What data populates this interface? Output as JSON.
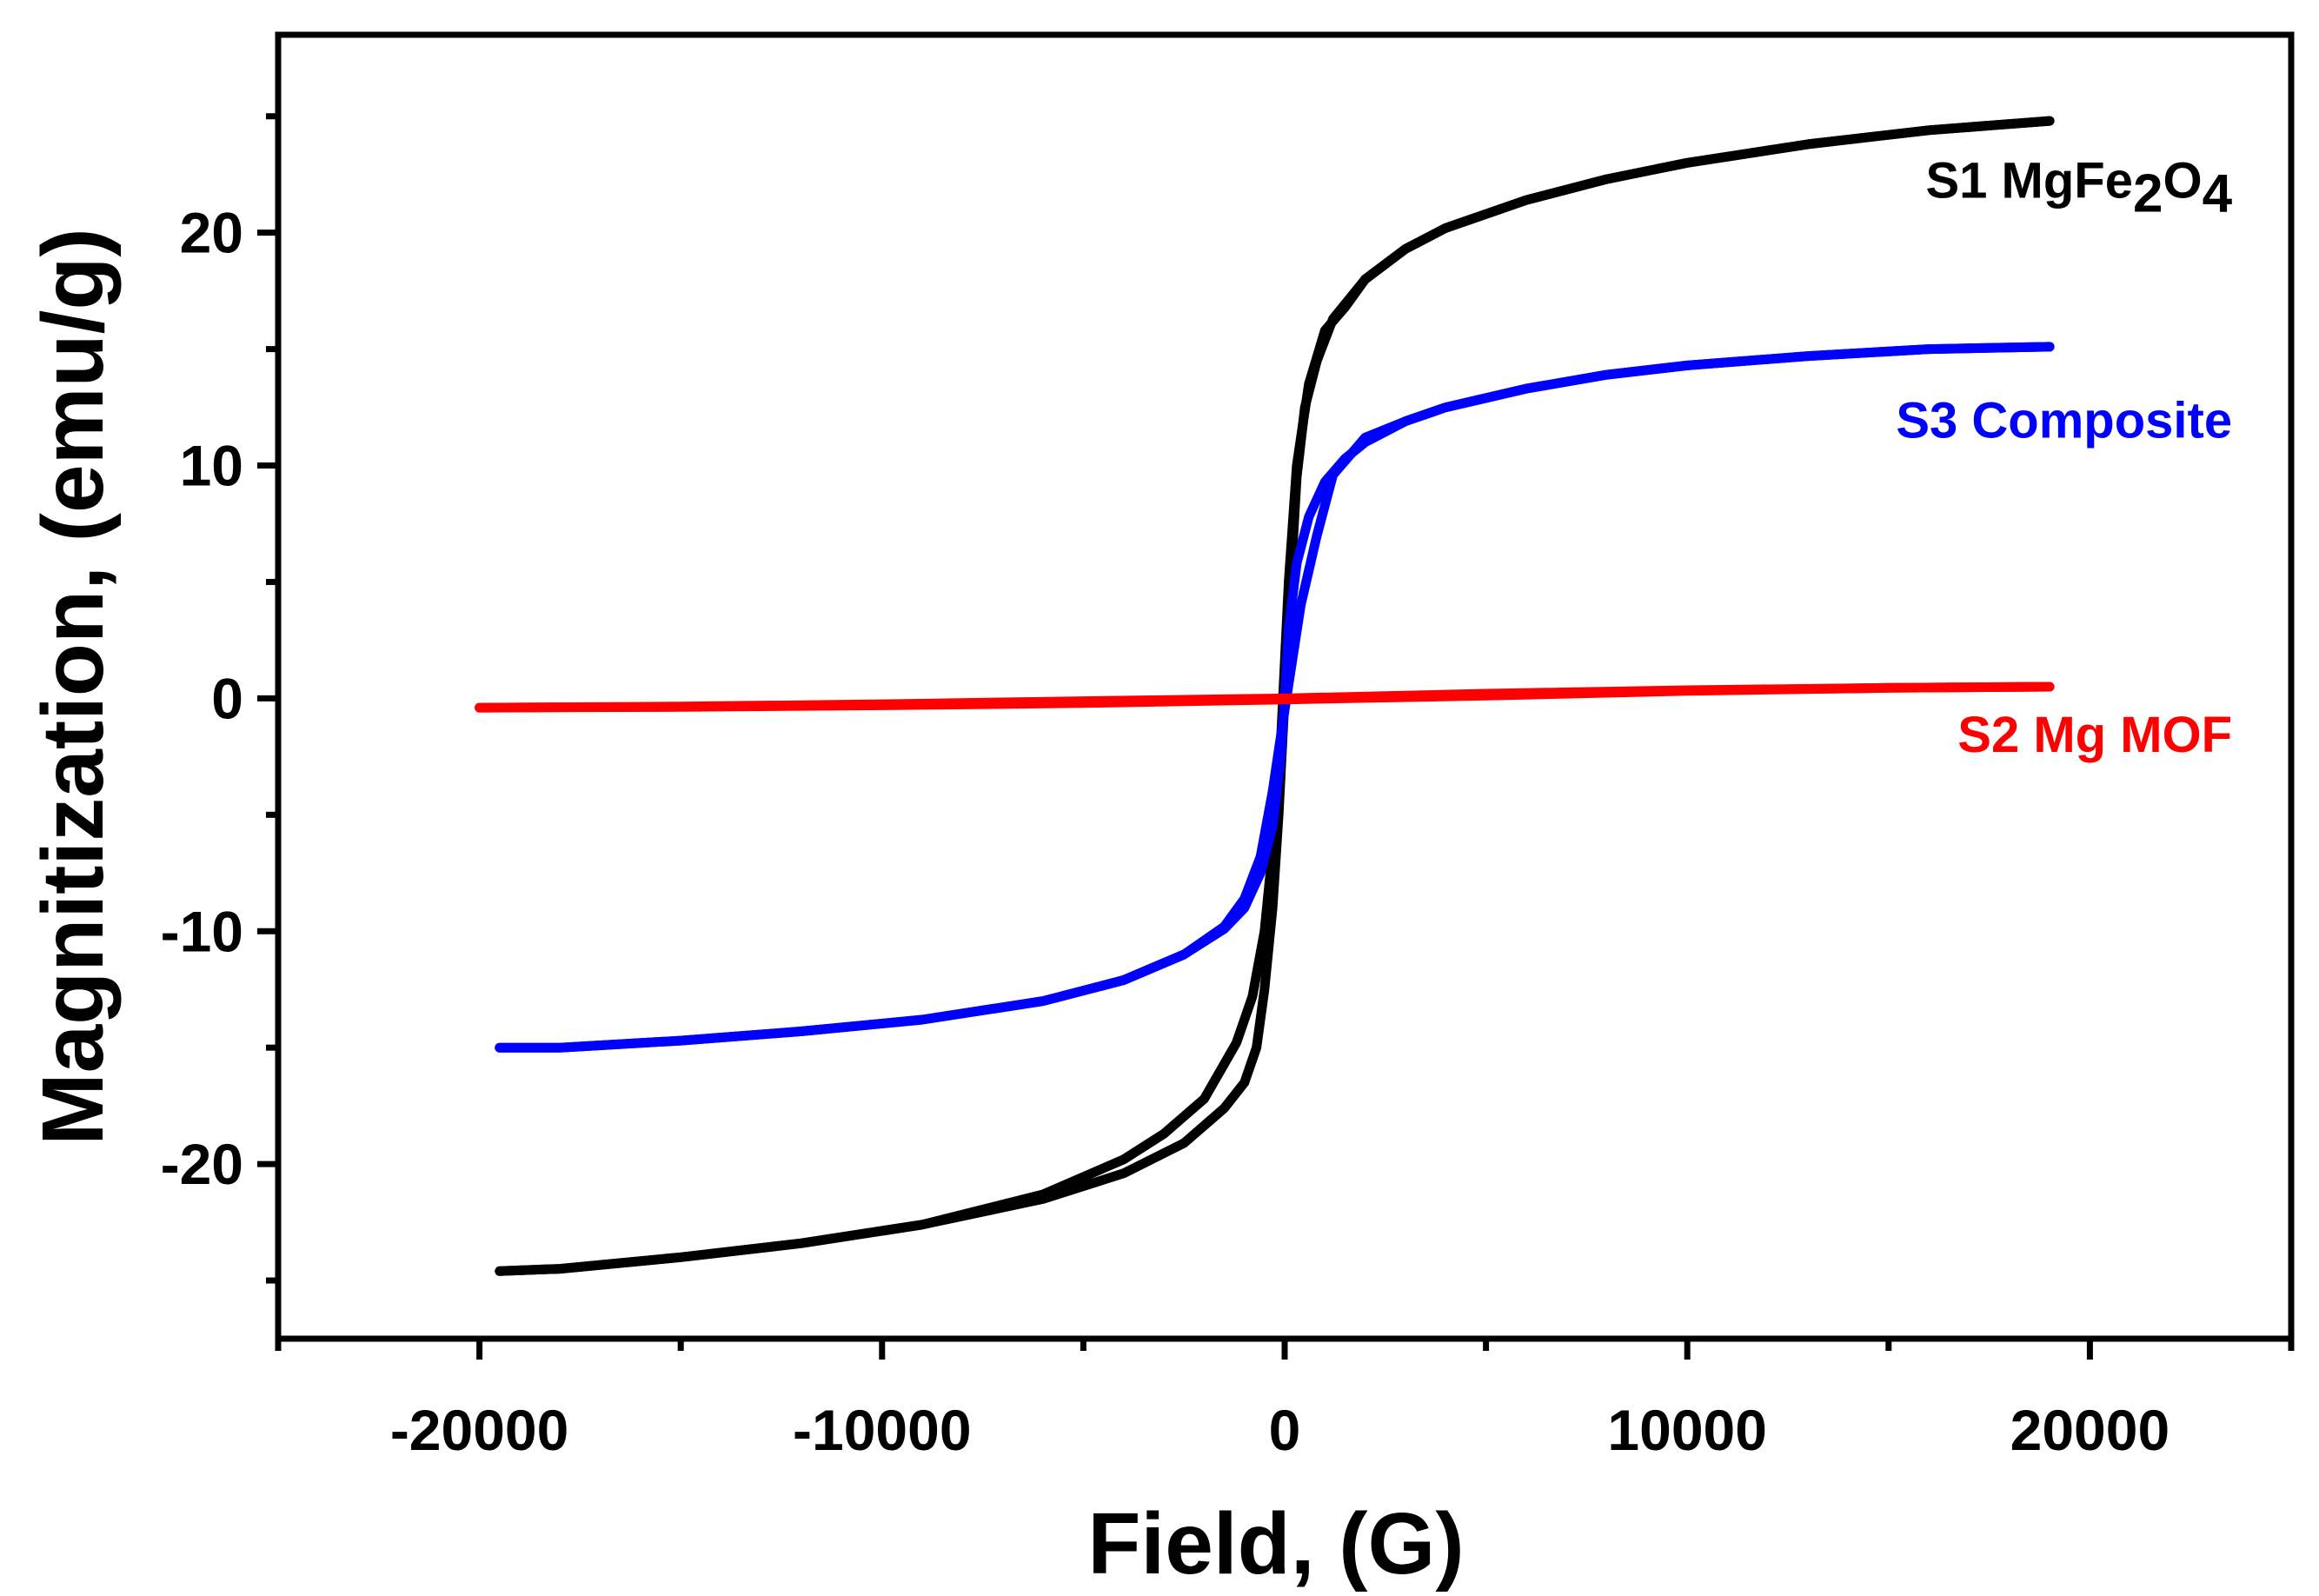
{
  "chart_data": {
    "type": "line",
    "title": "",
    "xlabel": "Field, (G)",
    "ylabel": "Magnitization, (emu/g)",
    "xlim": [
      -25000,
      25000
    ],
    "ylim": [
      -27.5,
      28.5
    ],
    "x_ticks": [
      -20000,
      -10000,
      0,
      10000,
      20000
    ],
    "x_tick_labels": [
      "-20000",
      "-10000",
      "0",
      "10000",
      "20000"
    ],
    "x_minor_ticks": [
      -25000,
      -15000,
      -5000,
      5000,
      15000,
      25000
    ],
    "y_ticks": [
      -20,
      -10,
      0,
      10,
      20
    ],
    "y_tick_labels": [
      "-20",
      "-10",
      "0",
      "10",
      "20"
    ],
    "y_minor_ticks": [
      -25,
      -15,
      -5,
      5,
      15,
      25
    ],
    "grid": false,
    "series": [
      {
        "name": "S1 MgFe2O4",
        "label_main": "S1 MgFe",
        "label_sub1": "2",
        "label_mid": "O",
        "label_sub2": "4",
        "color": "#000000",
        "label_anchor": [
          19000,
          21.5
        ],
        "branches": [
          {
            "x": [
              -19500,
              -18000,
              -15000,
              -12000,
              -9000,
              -6000,
              -4000,
              -2500,
              -1500,
              -1000,
              -700,
              -500,
              -300,
              -150,
              0,
              150,
              300,
              500,
              800,
              1200,
              2000,
              3000,
              4000,
              6000,
              8000,
              10000,
              13000,
              16000,
              19000
            ],
            "y": [
              -24.6,
              -24.5,
              -24.0,
              -23.4,
              -22.6,
              -21.5,
              -20.4,
              -19.1,
              -17.6,
              -16.5,
              -15.0,
              -12.5,
              -9.0,
              -5.0,
              0.0,
              5.0,
              9.5,
              12.5,
              14.5,
              16.3,
              18.0,
              19.3,
              20.2,
              21.4,
              22.3,
              23.0,
              23.8,
              24.4,
              24.8
            ]
          },
          {
            "x": [
              19000,
              16000,
              13000,
              10000,
              8000,
              6000,
              4000,
              3000,
              2000,
              1500,
              1000,
              600,
              300,
              100,
              -100,
              -300,
              -500,
              -800,
              -1200,
              -2000,
              -3000,
              -4000,
              -6000,
              -9000,
              -12000,
              -15000,
              -18000,
              -19500
            ],
            "y": [
              24.8,
              24.4,
              23.8,
              23.0,
              22.3,
              21.4,
              20.2,
              19.3,
              18.0,
              16.8,
              15.8,
              13.5,
              10.0,
              5.0,
              -2.0,
              -6.5,
              -10.0,
              -12.8,
              -14.8,
              -17.2,
              -18.7,
              -19.8,
              -21.3,
              -22.6,
              -23.4,
              -24.0,
              -24.5,
              -24.6
            ]
          }
        ]
      },
      {
        "name": "S3 Composite",
        "color": "#0000ff",
        "label_anchor": [
          19000,
          11.2
        ],
        "branches": [
          {
            "x": [
              -19500,
              -18000,
              -15000,
              -12000,
              -9000,
              -6000,
              -4000,
              -2500,
              -1500,
              -1000,
              -600,
              -300,
              -100,
              0,
              100,
              300,
              600,
              1000,
              1500,
              2000,
              3000,
              4000,
              6000,
              8000,
              10000,
              13000,
              16000,
              19000
            ],
            "y": [
              -15.0,
              -15.0,
              -14.7,
              -14.3,
              -13.8,
              -13.0,
              -12.1,
              -11.0,
              -9.9,
              -9.0,
              -7.5,
              -5.5,
              -2.5,
              0.0,
              3.0,
              5.8,
              7.8,
              9.3,
              10.3,
              11.0,
              11.9,
              12.5,
              13.3,
              13.9,
              14.3,
              14.7,
              15.0,
              15.1
            ]
          },
          {
            "x": [
              19000,
              16000,
              13000,
              10000,
              8000,
              6000,
              4000,
              3000,
              2000,
              1200,
              800,
              400,
              0,
              -300,
              -600,
              -1000,
              -1500,
              -2500,
              -4000,
              -6000,
              -9000,
              -12000,
              -15000,
              -18000,
              -19500
            ],
            "y": [
              15.1,
              15.0,
              14.7,
              14.3,
              13.9,
              13.3,
              12.5,
              11.9,
              11.2,
              9.6,
              7.0,
              4.0,
              -0.5,
              -4.0,
              -6.8,
              -8.6,
              -9.8,
              -11.0,
              -12.1,
              -13.0,
              -13.8,
              -14.3,
              -14.7,
              -15.0,
              -15.0
            ]
          }
        ]
      },
      {
        "name": "S2 Mg MOF",
        "color": "#ff0000",
        "label_anchor": [
          19000,
          -2.3
        ],
        "branches": [
          {
            "x": [
              -20000,
              -15000,
              -10000,
              -5000,
              0,
              5000,
              10000,
              15000,
              19000
            ],
            "y": [
              -0.4,
              -0.35,
              -0.25,
              -0.12,
              0.0,
              0.2,
              0.35,
              0.45,
              0.5
            ]
          },
          {
            "x": [
              19000,
              15000,
              10000,
              5000,
              0,
              -5000,
              -10000,
              -15000,
              -20000
            ],
            "y": [
              0.5,
              0.45,
              0.32,
              0.12,
              -0.05,
              -0.2,
              -0.3,
              -0.37,
              -0.4
            ]
          }
        ]
      }
    ]
  }
}
